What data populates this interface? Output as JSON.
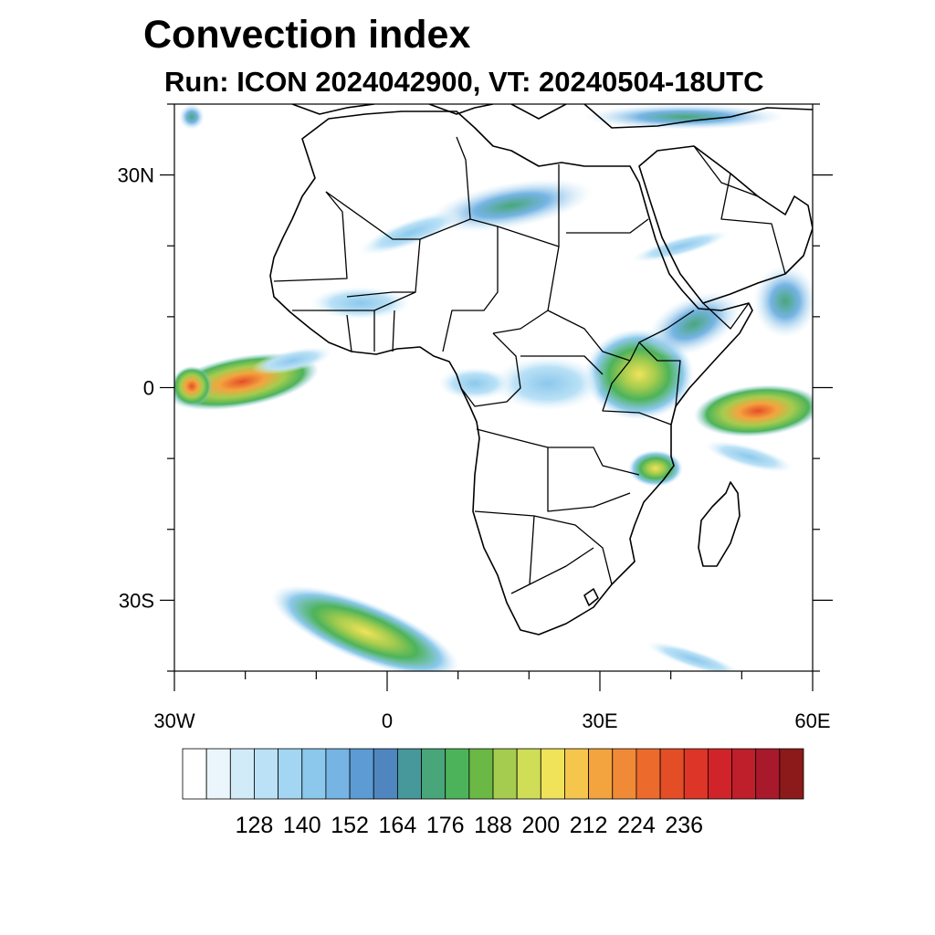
{
  "title": "Convection index",
  "subtitle": "Run: ICON 2024042900,  VT: 20240504-18UTC",
  "map": {
    "region": "Africa",
    "lon_range": [
      -30,
      60
    ],
    "lat_range": [
      -40,
      40
    ],
    "lat_labels": [
      {
        "lat": 30,
        "label": "30N"
      },
      {
        "lat": 0,
        "label": "0"
      },
      {
        "lat": -30,
        "label": "30S"
      }
    ],
    "lon_labels": [
      {
        "lon": -30,
        "label": "30W"
      },
      {
        "lon": 0,
        "label": "0"
      },
      {
        "lon": 30,
        "label": "30E"
      },
      {
        "lon": 60,
        "label": "60E"
      }
    ],
    "minor_lat_ticks": [
      40,
      20,
      10,
      -10,
      -20,
      -40
    ],
    "minor_lon_ticks": [
      -20,
      -10,
      10,
      20,
      40,
      50
    ]
  },
  "legend": {
    "colors": [
      "#ffffff",
      "#eaf6fc",
      "#d2ebf8",
      "#bae1f6",
      "#a2d6f2",
      "#8cc8ec",
      "#76b4e4",
      "#5c9bd3",
      "#4f86bf",
      "#47989b",
      "#49a67a",
      "#4db35a",
      "#6bb845",
      "#a5cc4e",
      "#cfdd57",
      "#f0e35a",
      "#f6c64c",
      "#f4a43f",
      "#f18a36",
      "#ec6b2c",
      "#e44e27",
      "#dd3527",
      "#d0242a",
      "#bf1f2a",
      "#a8192b",
      "#8c1a1a"
    ],
    "labels": [
      "128",
      "140",
      "152",
      "164",
      "176",
      "188",
      "200",
      "212",
      "224",
      "236"
    ]
  }
}
